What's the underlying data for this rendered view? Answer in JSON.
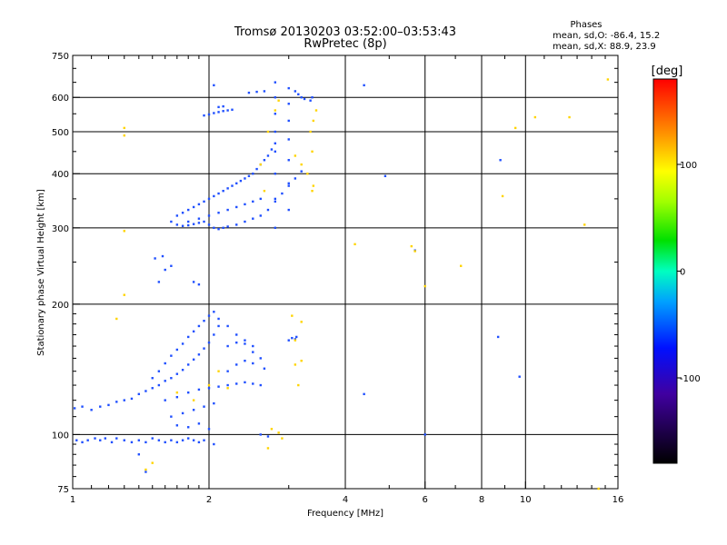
{
  "chart_data": {
    "type": "scatter",
    "title": "Tromsø 20130203 03:52:00–03:53:43",
    "subtitle": "RwPretec (8p)",
    "xlabel": "Frequency [MHz]",
    "ylabel": "Stationary phase Virtual Height [km]",
    "x_scale": "log",
    "y_scale": "log",
    "xlim": [
      1,
      16
    ],
    "ylim": [
      75,
      750
    ],
    "x_ticks": [
      1,
      2,
      4,
      6,
      8,
      10,
      16
    ],
    "x_tick_labels": [
      "1",
      "2",
      "4",
      "6",
      "8",
      "10",
      "16"
    ],
    "y_ticks": [
      75,
      100,
      200,
      300,
      400,
      500,
      600,
      750
    ],
    "y_tick_labels": [
      "75",
      "100",
      "200",
      "300",
      "400",
      "500",
      "600",
      "750"
    ],
    "x_minor_ticks": [
      1.1,
      1.2,
      1.3,
      1.4,
      1.5,
      1.6,
      1.7,
      1.8,
      1.9,
      3,
      5,
      7,
      9,
      11,
      12,
      13,
      14,
      15
    ],
    "y_minor_ticks": [
      80,
      85,
      90,
      95,
      110,
      120,
      130,
      140,
      150,
      160,
      170,
      180,
      190,
      250,
      350,
      450,
      550,
      650,
      700
    ],
    "grid": true,
    "stats": {
      "heading": "Phases",
      "line_o": "mean, sd,O: -86.4, 15.2",
      "line_x": "mean, sd,X:  88.9, 23.9"
    },
    "colorbar": {
      "label": "[deg]",
      "range": [
        -180,
        180
      ],
      "ticks": [
        100,
        0,
        -100
      ],
      "tick_labels": [
        "100",
        "0",
        "-100"
      ]
    },
    "colors": {
      "grid": "#000000",
      "o_mode": "#1f4fff",
      "x_mode": "#ffd400"
    },
    "series": [
      {
        "mode": "O",
        "points": [
          [
            1.02,
            97
          ],
          [
            1.05,
            96
          ],
          [
            1.08,
            97
          ],
          [
            1.12,
            98
          ],
          [
            1.15,
            97
          ],
          [
            1.18,
            98
          ],
          [
            1.22,
            96
          ],
          [
            1.25,
            98
          ],
          [
            1.3,
            97
          ],
          [
            1.35,
            96
          ],
          [
            1.4,
            97
          ],
          [
            1.45,
            96
          ],
          [
            1.5,
            98
          ],
          [
            1.55,
            97
          ],
          [
            1.6,
            96
          ],
          [
            1.65,
            97
          ],
          [
            1.7,
            96
          ],
          [
            1.75,
            97
          ],
          [
            1.8,
            98
          ],
          [
            1.85,
            97
          ],
          [
            1.9,
            96
          ],
          [
            1.95,
            97
          ],
          [
            2.05,
            95
          ],
          [
            1.01,
            115
          ],
          [
            1.05,
            116
          ],
          [
            1.1,
            114
          ],
          [
            1.15,
            116
          ],
          [
            1.2,
            117
          ],
          [
            1.25,
            119
          ],
          [
            1.3,
            120
          ],
          [
            1.35,
            121
          ],
          [
            1.4,
            124
          ],
          [
            1.45,
            126
          ],
          [
            1.5,
            128
          ],
          [
            1.55,
            130
          ],
          [
            1.6,
            133
          ],
          [
            1.65,
            135
          ],
          [
            1.7,
            138
          ],
          [
            1.75,
            141
          ],
          [
            1.8,
            145
          ],
          [
            1.85,
            149
          ],
          [
            1.9,
            153
          ],
          [
            1.95,
            158
          ],
          [
            2.0,
            163
          ],
          [
            2.05,
            170
          ],
          [
            2.1,
            178
          ],
          [
            1.5,
            135
          ],
          [
            1.55,
            140
          ],
          [
            1.6,
            146
          ],
          [
            1.65,
            152
          ],
          [
            1.7,
            157
          ],
          [
            1.75,
            162
          ],
          [
            1.8,
            168
          ],
          [
            1.85,
            173
          ],
          [
            1.9,
            178
          ],
          [
            1.95,
            183
          ],
          [
            2.0,
            188
          ],
          [
            2.05,
            192
          ],
          [
            2.1,
            185
          ],
          [
            2.2,
            178
          ],
          [
            2.3,
            170
          ],
          [
            2.4,
            162
          ],
          [
            2.5,
            155
          ],
          [
            1.6,
            120
          ],
          [
            1.7,
            122
          ],
          [
            1.8,
            125
          ],
          [
            1.9,
            127
          ],
          [
            2.0,
            128
          ],
          [
            2.1,
            129
          ],
          [
            2.2,
            130
          ],
          [
            2.3,
            131
          ],
          [
            2.4,
            132
          ],
          [
            2.5,
            131
          ],
          [
            2.6,
            130
          ],
          [
            1.65,
            110
          ],
          [
            1.75,
            112
          ],
          [
            1.85,
            114
          ],
          [
            1.95,
            116
          ],
          [
            2.05,
            118
          ],
          [
            1.7,
            105
          ],
          [
            1.8,
            104
          ],
          [
            1.9,
            106
          ],
          [
            2.0,
            103
          ],
          [
            2.2,
            140
          ],
          [
            2.3,
            145
          ],
          [
            2.4,
            148
          ],
          [
            2.5,
            146
          ],
          [
            2.6,
            150
          ],
          [
            2.65,
            142
          ],
          [
            2.2,
            160
          ],
          [
            2.3,
            163
          ],
          [
            2.4,
            165
          ],
          [
            2.5,
            160
          ],
          [
            3.0,
            165
          ],
          [
            3.05,
            167
          ],
          [
            3.1,
            166
          ],
          [
            3.12,
            168
          ],
          [
            2.6,
            100
          ],
          [
            2.7,
            99
          ],
          [
            1.45,
            82
          ],
          [
            1.4,
            90
          ],
          [
            1.55,
            225
          ],
          [
            1.6,
            240
          ],
          [
            1.65,
            245
          ],
          [
            1.52,
            255
          ],
          [
            1.58,
            258
          ],
          [
            1.85,
            225
          ],
          [
            1.9,
            222
          ],
          [
            1.65,
            310
          ],
          [
            1.7,
            305
          ],
          [
            1.75,
            303
          ],
          [
            1.8,
            304
          ],
          [
            1.85,
            306
          ],
          [
            1.9,
            308
          ],
          [
            1.95,
            310
          ],
          [
            2.0,
            305
          ],
          [
            2.05,
            300
          ],
          [
            2.1,
            298
          ],
          [
            2.15,
            300
          ],
          [
            2.2,
            302
          ],
          [
            2.3,
            305
          ],
          [
            2.4,
            310
          ],
          [
            2.5,
            315
          ],
          [
            2.6,
            320
          ],
          [
            2.7,
            330
          ],
          [
            2.8,
            345
          ],
          [
            2.9,
            360
          ],
          [
            3.0,
            375
          ],
          [
            3.1,
            390
          ],
          [
            3.2,
            405
          ],
          [
            1.7,
            320
          ],
          [
            1.75,
            325
          ],
          [
            1.8,
            330
          ],
          [
            1.85,
            335
          ],
          [
            1.9,
            340
          ],
          [
            1.95,
            345
          ],
          [
            2.0,
            350
          ],
          [
            2.05,
            355
          ],
          [
            2.1,
            360
          ],
          [
            2.15,
            365
          ],
          [
            2.2,
            370
          ],
          [
            2.25,
            375
          ],
          [
            2.3,
            380
          ],
          [
            2.35,
            385
          ],
          [
            2.4,
            390
          ],
          [
            2.45,
            395
          ],
          [
            2.5,
            400
          ],
          [
            2.55,
            410
          ],
          [
            2.6,
            420
          ],
          [
            2.65,
            430
          ],
          [
            2.7,
            440
          ],
          [
            2.75,
            455
          ],
          [
            2.8,
            470
          ],
          [
            1.8,
            310
          ],
          [
            1.9,
            315
          ],
          [
            2.0,
            320
          ],
          [
            2.1,
            325
          ],
          [
            2.2,
            330
          ],
          [
            2.3,
            335
          ],
          [
            2.4,
            340
          ],
          [
            2.5,
            345
          ],
          [
            2.6,
            350
          ],
          [
            1.95,
            545
          ],
          [
            2.0,
            548
          ],
          [
            2.05,
            552
          ],
          [
            2.1,
            555
          ],
          [
            2.15,
            558
          ],
          [
            2.2,
            560
          ],
          [
            2.25,
            562
          ],
          [
            2.1,
            570
          ],
          [
            2.15,
            572
          ],
          [
            2.05,
            640
          ],
          [
            2.45,
            615
          ],
          [
            2.55,
            618
          ],
          [
            2.65,
            620
          ],
          [
            2.8,
            300
          ],
          [
            2.8,
            350
          ],
          [
            2.8,
            400
          ],
          [
            2.8,
            450
          ],
          [
            2.8,
            500
          ],
          [
            2.8,
            550
          ],
          [
            2.8,
            600
          ],
          [
            2.8,
            650
          ],
          [
            3.0,
            330
          ],
          [
            3.0,
            380
          ],
          [
            3.0,
            430
          ],
          [
            3.0,
            480
          ],
          [
            3.0,
            530
          ],
          [
            3.0,
            580
          ],
          [
            3.0,
            630
          ],
          [
            3.1,
            620
          ],
          [
            3.15,
            610
          ],
          [
            3.2,
            600
          ],
          [
            3.25,
            595
          ],
          [
            3.35,
            590
          ],
          [
            3.38,
            600
          ],
          [
            8.8,
            430
          ],
          [
            8.7,
            168
          ],
          [
            9.7,
            136
          ],
          [
            4.4,
            124
          ],
          [
            4.9,
            395
          ],
          [
            4.4,
            640
          ],
          [
            5.7,
            266
          ],
          [
            6.0,
            100
          ]
        ]
      },
      {
        "mode": "X",
        "points": [
          [
            1.3,
            510
          ],
          [
            1.3,
            295
          ],
          [
            1.3,
            210
          ],
          [
            1.3,
            490
          ],
          [
            1.25,
            185
          ],
          [
            1.7,
            125
          ],
          [
            1.85,
            120
          ],
          [
            2.0,
            130
          ],
          [
            2.1,
            140
          ],
          [
            2.2,
            128
          ],
          [
            2.75,
            103
          ],
          [
            2.85,
            101
          ],
          [
            2.9,
            98
          ],
          [
            2.7,
            93
          ],
          [
            3.1,
            145
          ],
          [
            3.2,
            148
          ],
          [
            3.15,
            130
          ],
          [
            3.1,
            165
          ],
          [
            3.2,
            182
          ],
          [
            3.05,
            188
          ],
          [
            2.65,
            365
          ],
          [
            2.6,
            420
          ],
          [
            2.7,
            500
          ],
          [
            2.8,
            560
          ],
          [
            2.85,
            590
          ],
          [
            3.1,
            440
          ],
          [
            3.2,
            420
          ],
          [
            3.3,
            400
          ],
          [
            3.35,
            500
          ],
          [
            3.38,
            450
          ],
          [
            3.4,
            530
          ],
          [
            3.45,
            560
          ],
          [
            3.38,
            365
          ],
          [
            3.4,
            375
          ],
          [
            4.2,
            275
          ],
          [
            5.6,
            272
          ],
          [
            6.0,
            220
          ],
          [
            7.2,
            245
          ],
          [
            5.7,
            265
          ],
          [
            8.9,
            355
          ],
          [
            9.5,
            510
          ],
          [
            10.5,
            540
          ],
          [
            12.5,
            540
          ],
          [
            13.5,
            305
          ],
          [
            15.2,
            660
          ],
          [
            14.5,
            75
          ],
          [
            1.5,
            86
          ],
          [
            1.45,
            83
          ]
        ]
      }
    ]
  }
}
